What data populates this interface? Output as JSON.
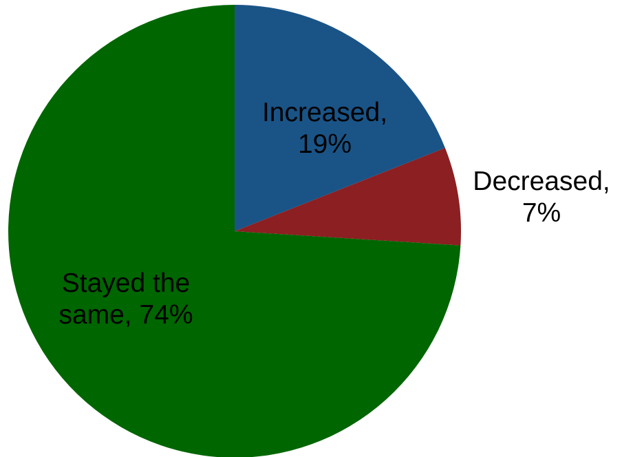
{
  "chart_data": {
    "type": "pie",
    "slices": [
      {
        "name": "Increased",
        "value": 19,
        "color": "#1a5487",
        "label_lines": [
          "Increased,",
          "19%"
        ],
        "label_position": "inside"
      },
      {
        "name": "Decreased",
        "value": 7,
        "color": "#8b1f22",
        "label_lines": [
          "Decreased,",
          "7%"
        ],
        "label_position": "outside"
      },
      {
        "name": "Stayed the same",
        "value": 74,
        "color": "#006600",
        "label_lines": [
          "Stayed the",
          "same, 74%"
        ],
        "label_position": "inside"
      }
    ],
    "start_angle": "12 o'clock",
    "direction": "clockwise",
    "legend": "none"
  }
}
